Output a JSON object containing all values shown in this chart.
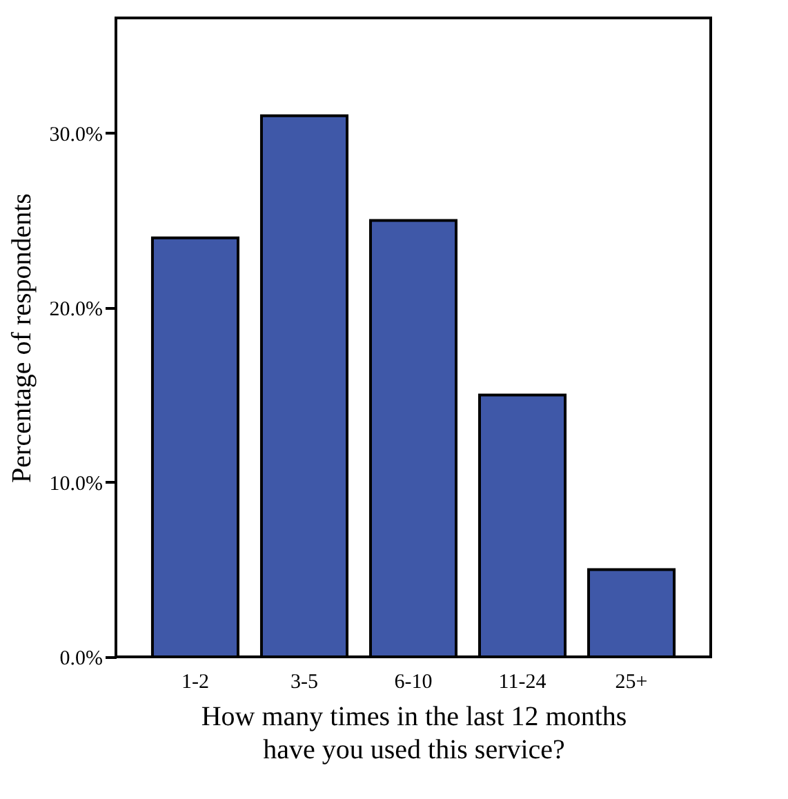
{
  "chart_data": {
    "type": "bar",
    "xlabel": "How many times in the last 12 months\nhave you used this service?",
    "ylabel": "Percentage of respondents",
    "categories": [
      "1-2",
      "3-5",
      "6-10",
      "11-24",
      "25+"
    ],
    "values": [
      24,
      31,
      25,
      15,
      5
    ],
    "color": "#3f58a8",
    "ylim": [
      0,
      36.6
    ],
    "yticks": [
      {
        "value": 0,
        "label": "0.0%"
      },
      {
        "value": 10,
        "label": "10.0%"
      },
      {
        "value": 20,
        "label": "20.0%"
      },
      {
        "value": 30,
        "label": "30.0%"
      }
    ],
    "grid": false
  }
}
